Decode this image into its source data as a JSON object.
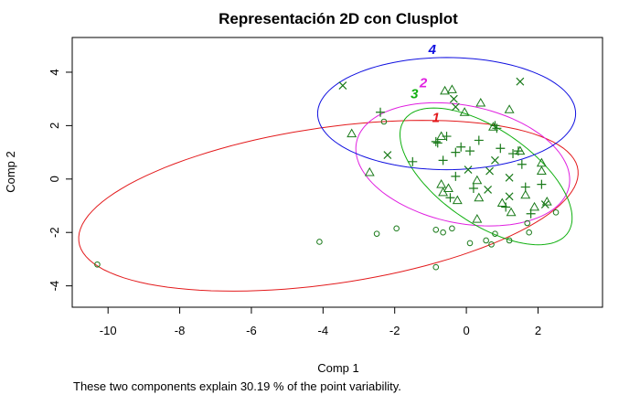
{
  "chart_data": {
    "type": "scatter",
    "title": "Representación 2D con Clusplot",
    "xlabel": "Comp 1",
    "ylabel": "Comp 2",
    "caption": "These two components explain 30.19 % of the point variability.",
    "xlim": [
      -11.0,
      3.8
    ],
    "ylim": [
      -4.8,
      5.3
    ],
    "x_ticks": [
      -10,
      -8,
      -6,
      -4,
      -2,
      0,
      2
    ],
    "y_ticks": [
      -4,
      -2,
      0,
      2,
      4
    ],
    "grid": false,
    "clusters": [
      {
        "label": "1",
        "color": "#e31a1c",
        "ellipse": {
          "cx": -3.85,
          "cy": -1.0,
          "rx": 7.1,
          "ry": 2.9,
          "angle_deg": 12
        },
        "label_pos": [
          -0.85,
          2.3
        ]
      },
      {
        "label": "2",
        "color": "#e020e0",
        "ellipse": {
          "cx": -0.1,
          "cy": 0.55,
          "rx": 3.1,
          "ry": 2.15,
          "angle_deg": -22
        },
        "label_pos": [
          -1.2,
          3.6
        ]
      },
      {
        "label": "3",
        "color": "#10b010",
        "ellipse": {
          "cx": 0.55,
          "cy": 0.1,
          "rx": 3.15,
          "ry": 1.55,
          "angle_deg": -48
        },
        "label_pos": [
          -1.45,
          3.2
        ]
      },
      {
        "label": "4",
        "color": "#1010e0",
        "ellipse": {
          "cx": -0.55,
          "cy": 2.45,
          "rx": 3.6,
          "ry": 2.1,
          "angle_deg": 0
        },
        "label_pos": [
          -0.95,
          4.85
        ]
      }
    ],
    "point_color": "#1a7a1a",
    "points": [
      {
        "shape": "circle",
        "x": -10.3,
        "y": -3.2
      },
      {
        "shape": "circle",
        "x": -4.1,
        "y": -2.35
      },
      {
        "shape": "circle",
        "x": -2.5,
        "y": -2.05
      },
      {
        "shape": "circle",
        "x": -1.95,
        "y": -1.85
      },
      {
        "shape": "circle",
        "x": -2.3,
        "y": 2.15
      },
      {
        "shape": "circle",
        "x": -0.85,
        "y": -1.9
      },
      {
        "shape": "circle",
        "x": -0.65,
        "y": -2.0
      },
      {
        "shape": "circle",
        "x": -0.4,
        "y": -1.85
      },
      {
        "shape": "circle",
        "x": -0.85,
        "y": -3.3
      },
      {
        "shape": "circle",
        "x": 0.1,
        "y": -2.4
      },
      {
        "shape": "circle",
        "x": 0.55,
        "y": -2.3
      },
      {
        "shape": "circle",
        "x": 0.7,
        "y": -2.45
      },
      {
        "shape": "circle",
        "x": 0.8,
        "y": -2.05
      },
      {
        "shape": "circle",
        "x": 1.2,
        "y": -2.3
      },
      {
        "shape": "circle",
        "x": 1.7,
        "y": -1.65
      },
      {
        "shape": "circle",
        "x": 1.75,
        "y": -2.0
      },
      {
        "shape": "circle",
        "x": 2.5,
        "y": -1.25
      },
      {
        "shape": "triangle",
        "x": -3.2,
        "y": 1.7
      },
      {
        "shape": "triangle",
        "x": -2.7,
        "y": 0.25
      },
      {
        "shape": "triangle",
        "x": -0.7,
        "y": 1.6
      },
      {
        "shape": "triangle",
        "x": -0.7,
        "y": -0.2
      },
      {
        "shape": "triangle",
        "x": -0.65,
        "y": -0.5
      },
      {
        "shape": "triangle",
        "x": -0.5,
        "y": -0.35
      },
      {
        "shape": "triangle",
        "x": -0.6,
        "y": 3.3
      },
      {
        "shape": "triangle",
        "x": -0.25,
        "y": -0.8
      },
      {
        "shape": "triangle",
        "x": -0.4,
        "y": 3.35
      },
      {
        "shape": "triangle",
        "x": -0.05,
        "y": 2.5
      },
      {
        "shape": "triangle",
        "x": 0.4,
        "y": 2.85
      },
      {
        "shape": "triangle",
        "x": 0.3,
        "y": -0.05
      },
      {
        "shape": "triangle",
        "x": 0.35,
        "y": -0.7
      },
      {
        "shape": "triangle",
        "x": 0.3,
        "y": -1.5
      },
      {
        "shape": "triangle",
        "x": 0.75,
        "y": 1.95
      },
      {
        "shape": "triangle",
        "x": 1.0,
        "y": -0.9
      },
      {
        "shape": "triangle",
        "x": 1.2,
        "y": 2.6
      },
      {
        "shape": "triangle",
        "x": 1.5,
        "y": 1.05
      },
      {
        "shape": "triangle",
        "x": 1.65,
        "y": -0.6
      },
      {
        "shape": "triangle",
        "x": 1.9,
        "y": -1.05
      },
      {
        "shape": "triangle",
        "x": 2.1,
        "y": 0.6
      },
      {
        "shape": "triangle",
        "x": 2.1,
        "y": 0.3
      },
      {
        "shape": "triangle",
        "x": 2.25,
        "y": -0.85
      },
      {
        "shape": "triangle",
        "x": 1.25,
        "y": -1.25
      },
      {
        "shape": "plus",
        "x": -2.4,
        "y": 2.5
      },
      {
        "shape": "plus",
        "x": -1.5,
        "y": 0.65
      },
      {
        "shape": "plus",
        "x": -0.85,
        "y": 1.4
      },
      {
        "shape": "plus",
        "x": -0.8,
        "y": 1.35
      },
      {
        "shape": "plus",
        "x": -0.65,
        "y": 0.7
      },
      {
        "shape": "plus",
        "x": -0.55,
        "y": 1.6
      },
      {
        "shape": "plus",
        "x": -0.45,
        "y": -0.7
      },
      {
        "shape": "plus",
        "x": -0.3,
        "y": 1.0
      },
      {
        "shape": "plus",
        "x": -0.15,
        "y": 1.2
      },
      {
        "shape": "plus",
        "x": 0.1,
        "y": 1.05
      },
      {
        "shape": "plus",
        "x": 0.35,
        "y": 1.45
      },
      {
        "shape": "plus",
        "x": 0.8,
        "y": 2.0
      },
      {
        "shape": "plus",
        "x": 0.85,
        "y": 1.9
      },
      {
        "shape": "plus",
        "x": 0.95,
        "y": 1.15
      },
      {
        "shape": "plus",
        "x": 1.1,
        "y": -1.05
      },
      {
        "shape": "plus",
        "x": 1.3,
        "y": 0.95
      },
      {
        "shape": "plus",
        "x": 1.45,
        "y": 1.05
      },
      {
        "shape": "plus",
        "x": 1.55,
        "y": 0.55
      },
      {
        "shape": "plus",
        "x": 1.65,
        "y": -0.3
      },
      {
        "shape": "plus",
        "x": 1.8,
        "y": -1.3
      },
      {
        "shape": "plus",
        "x": 2.1,
        "y": -0.2
      },
      {
        "shape": "plus",
        "x": 0.2,
        "y": -0.35
      },
      {
        "shape": "plus",
        "x": -0.3,
        "y": 0.1
      },
      {
        "shape": "cross",
        "x": -3.45,
        "y": 3.5
      },
      {
        "shape": "cross",
        "x": -2.2,
        "y": 0.9
      },
      {
        "shape": "cross",
        "x": -0.35,
        "y": 3.0
      },
      {
        "shape": "cross",
        "x": -0.3,
        "y": 2.7
      },
      {
        "shape": "cross",
        "x": 0.05,
        "y": 0.35
      },
      {
        "shape": "cross",
        "x": 0.6,
        "y": -0.4
      },
      {
        "shape": "cross",
        "x": 0.65,
        "y": 0.3
      },
      {
        "shape": "cross",
        "x": 0.8,
        "y": 0.7
      },
      {
        "shape": "cross",
        "x": 1.2,
        "y": 0.05
      },
      {
        "shape": "cross",
        "x": 1.2,
        "y": -0.65
      },
      {
        "shape": "cross",
        "x": 1.5,
        "y": 3.65
      },
      {
        "shape": "cross",
        "x": 2.2,
        "y": -0.95
      }
    ]
  }
}
